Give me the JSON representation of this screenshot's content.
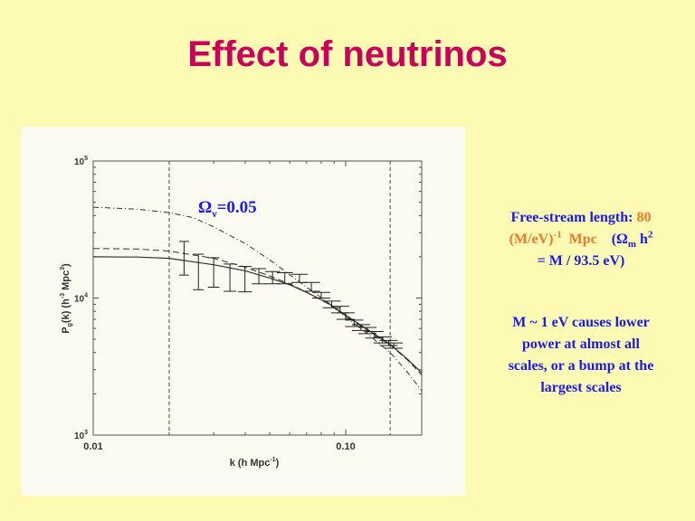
{
  "slide": {
    "title": "Effect of neutrinos",
    "note1": {
      "a": "Free-stream length: ",
      "b": "80",
      "c": "(M/eV)",
      "c_sup": "-1",
      "d": "  Mpc",
      "e": "(Ω",
      "e_sub": "m",
      "f": " h",
      "f_sup": "2",
      "g": "= M / 93.5 eV)"
    },
    "note2": [
      "M ~ 1 eV causes lower",
      "power at almost all",
      "scales, or a bump at the",
      "largest scales"
    ],
    "colors": {
      "title": "#c8005a",
      "text": "#1a1aee",
      "highlight": "#f07828",
      "background": "#fdfab4"
    }
  },
  "chart_data": {
    "type": "line",
    "xscale": "log",
    "yscale": "log",
    "xlim": [
      0.01,
      0.2
    ],
    "ylim": [
      1000,
      100000
    ],
    "xticks": [
      {
        "v": 0.01,
        "label": "0.01"
      },
      {
        "v": 0.1,
        "label": "0.10"
      }
    ],
    "yticks": [
      {
        "v": 100000,
        "base": "10",
        "exp": "5"
      },
      {
        "v": 10000,
        "base": "10",
        "exp": "4"
      },
      {
        "v": 1000,
        "base": "10",
        "exp": "3"
      }
    ],
    "xlabel": {
      "a": "k (h Mpc",
      "sup": "-1",
      "b": ")"
    },
    "ylabel": {
      "a": "P",
      "sub": "g",
      "b": "(k) (h",
      "sup1": "-3",
      "c": " Mpc",
      "sup2": "3",
      "d": ")"
    },
    "annotation": {
      "a": "Ω",
      "sub": "ν",
      "b": "=0.05"
    },
    "vlines": [
      0.02,
      0.15
    ],
    "series": [
      {
        "name": "solid",
        "style": "solid",
        "points": [
          [
            0.01,
            20000
          ],
          [
            0.015,
            19900
          ],
          [
            0.02,
            19500
          ],
          [
            0.03,
            17500
          ],
          [
            0.04,
            15800
          ],
          [
            0.05,
            14000
          ],
          [
            0.06,
            12500
          ],
          [
            0.07,
            11000
          ],
          [
            0.085,
            9200
          ],
          [
            0.1,
            7500
          ],
          [
            0.12,
            6000
          ],
          [
            0.15,
            4600
          ],
          [
            0.175,
            3600
          ],
          [
            0.2,
            2850
          ]
        ]
      },
      {
        "name": "dashed",
        "style": "dashed",
        "points": [
          [
            0.01,
            23000
          ],
          [
            0.015,
            22800
          ],
          [
            0.02,
            22000
          ],
          [
            0.03,
            19500
          ],
          [
            0.04,
            16800
          ],
          [
            0.05,
            14500
          ],
          [
            0.06,
            12700
          ],
          [
            0.07,
            11000
          ],
          [
            0.085,
            9100
          ],
          [
            0.1,
            7400
          ],
          [
            0.12,
            5950
          ],
          [
            0.15,
            4550
          ],
          [
            0.175,
            3550
          ],
          [
            0.2,
            2750
          ]
        ]
      },
      {
        "name": "Ω_ν=0.05",
        "style": "dashdot",
        "points": [
          [
            0.01,
            46000
          ],
          [
            0.015,
            44500
          ],
          [
            0.02,
            42000
          ],
          [
            0.025,
            38500
          ],
          [
            0.03,
            33000
          ],
          [
            0.04,
            25000
          ],
          [
            0.05,
            19000
          ],
          [
            0.06,
            14800
          ],
          [
            0.07,
            12000
          ],
          [
            0.085,
            9300
          ],
          [
            0.1,
            7300
          ],
          [
            0.12,
            5600
          ],
          [
            0.15,
            4000
          ],
          [
            0.175,
            2900
          ],
          [
            0.2,
            2100
          ]
        ]
      }
    ],
    "errorbars": [
      [
        0.0229,
        14700,
        25900
      ],
      [
        0.0261,
        11500,
        20900
      ],
      [
        0.03,
        12000,
        19700
      ],
      [
        0.0348,
        11200,
        17700
      ],
      [
        0.0399,
        11100,
        17000
      ],
      [
        0.0453,
        12700,
        16400
      ],
      [
        0.0513,
        12700,
        15600
      ],
      [
        0.0574,
        12700,
        15300
      ],
      [
        0.0656,
        13000,
        14900
      ],
      [
        0.0731,
        11200,
        13000
      ],
      [
        0.08,
        10000,
        11000
      ],
      [
        0.088,
        8500,
        9500
      ],
      [
        0.095,
        7800,
        8700
      ],
      [
        0.1,
        7000,
        7800
      ],
      [
        0.108,
        6200,
        6900
      ],
      [
        0.115,
        5800,
        6400
      ],
      [
        0.122,
        5500,
        6100
      ],
      [
        0.13,
        5100,
        5700
      ],
      [
        0.14,
        4700,
        5200
      ],
      [
        0.148,
        4500,
        4900
      ],
      [
        0.155,
        4300,
        4700
      ]
    ]
  }
}
